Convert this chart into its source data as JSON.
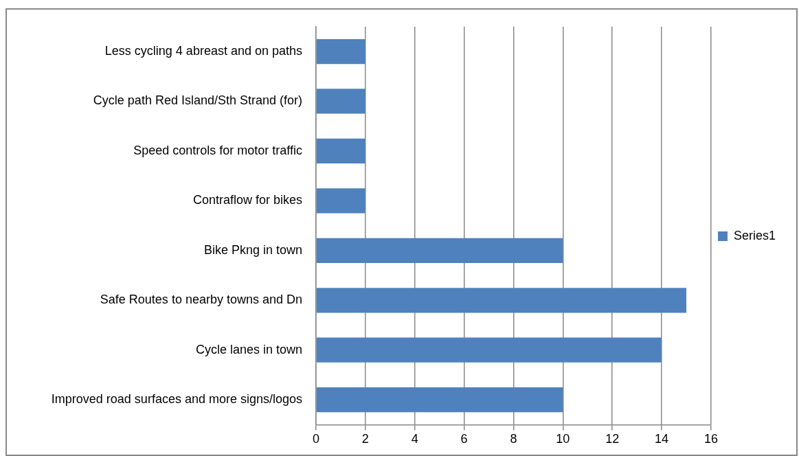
{
  "chart_data": {
    "type": "bar",
    "orientation": "horizontal",
    "categories": [
      "Less cycling 4 abreast and on paths",
      "Cycle path Red Island/Sth Strand (for)",
      "Speed controls for motor traffic",
      "Contraflow for bikes",
      "Bike Pkng in town",
      "Safe Routes to nearby towns and Dn",
      "Cycle lanes in town",
      "Improved road surfaces and more signs/logos"
    ],
    "series": [
      {
        "name": "Series1",
        "color": "#4f81bd",
        "values": [
          2,
          2,
          2,
          2,
          10,
          15,
          14,
          10
        ]
      }
    ],
    "xlim": [
      0,
      16
    ],
    "xticks": [
      0,
      2,
      4,
      6,
      8,
      10,
      12,
      14,
      16
    ],
    "grid": "x",
    "legend": "right"
  }
}
